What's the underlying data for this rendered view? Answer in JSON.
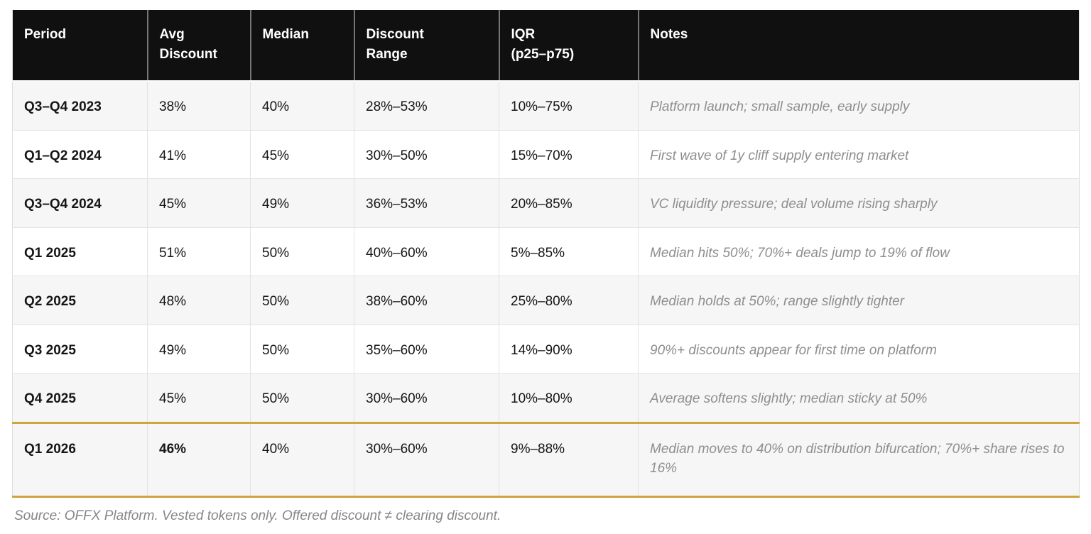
{
  "chart_data": {
    "type": "table",
    "title": "",
    "columns": [
      {
        "key": "period",
        "label": "Period"
      },
      {
        "key": "avg_discount",
        "label": "Avg\nDiscount"
      },
      {
        "key": "median",
        "label": "Median"
      },
      {
        "key": "discount_range",
        "label": "Discount\nRange"
      },
      {
        "key": "iqr",
        "label": "IQR\n(p25–p75)"
      },
      {
        "key": "notes",
        "label": "Notes"
      }
    ],
    "rows": [
      {
        "period": "Q3–Q4 2023",
        "avg_discount": "38%",
        "median": "40%",
        "discount_range": "28%–53%",
        "iqr": "10%–75%",
        "notes": "Platform launch; small sample, early supply",
        "highlight": false,
        "avg_bold": false
      },
      {
        "period": "Q1–Q2 2024",
        "avg_discount": "41%",
        "median": "45%",
        "discount_range": "30%–50%",
        "iqr": "15%–70%",
        "notes": "First wave of 1y cliff supply entering market",
        "highlight": false,
        "avg_bold": false
      },
      {
        "period": "Q3–Q4 2024",
        "avg_discount": "45%",
        "median": "49%",
        "discount_range": "36%–53%",
        "iqr": "20%–85%",
        "notes": "VC liquidity pressure; deal volume rising sharply",
        "highlight": false,
        "avg_bold": false
      },
      {
        "period": "Q1 2025",
        "avg_discount": "51%",
        "median": "50%",
        "discount_range": "40%–60%",
        "iqr": "5%–85%",
        "notes": "Median hits 50%; 70%+ deals jump to 19% of flow",
        "highlight": false,
        "avg_bold": false
      },
      {
        "period": "Q2 2025",
        "avg_discount": "48%",
        "median": "50%",
        "discount_range": "38%–60%",
        "iqr": "25%–80%",
        "notes": "Median holds at 50%; range slightly tighter",
        "highlight": false,
        "avg_bold": false
      },
      {
        "period": "Q3 2025",
        "avg_discount": "49%",
        "median": "50%",
        "discount_range": "35%–60%",
        "iqr": "14%–90%",
        "notes": "90%+ discounts appear for first time on platform",
        "highlight": false,
        "avg_bold": false
      },
      {
        "period": "Q4 2025",
        "avg_discount": "45%",
        "median": "50%",
        "discount_range": "30%–60%",
        "iqr": "10%–80%",
        "notes": "Average softens slightly; median sticky at 50%",
        "highlight": false,
        "avg_bold": false
      },
      {
        "period": "Q1 2026",
        "avg_discount": "46%",
        "median": "40%",
        "discount_range": "30%–60%",
        "iqr": "9%–88%",
        "notes": "Median moves to 40% on distribution bifurcation; 70%+ share rises to 16%",
        "highlight": true,
        "avg_bold": true
      }
    ]
  },
  "footer": {
    "source_note": "Source: OFFX Platform. Vested tokens only. Offered discount ≠ clearing discount."
  },
  "colors": {
    "header_bg": "#101010",
    "header_text": "#ffffff",
    "row_bg": "#ffffff",
    "row_alt_bg": "#f6f6f6",
    "highlight_border": "#d0a43f",
    "notes_text": "#8e8e8e",
    "grid_line": "#e2e2e2"
  }
}
